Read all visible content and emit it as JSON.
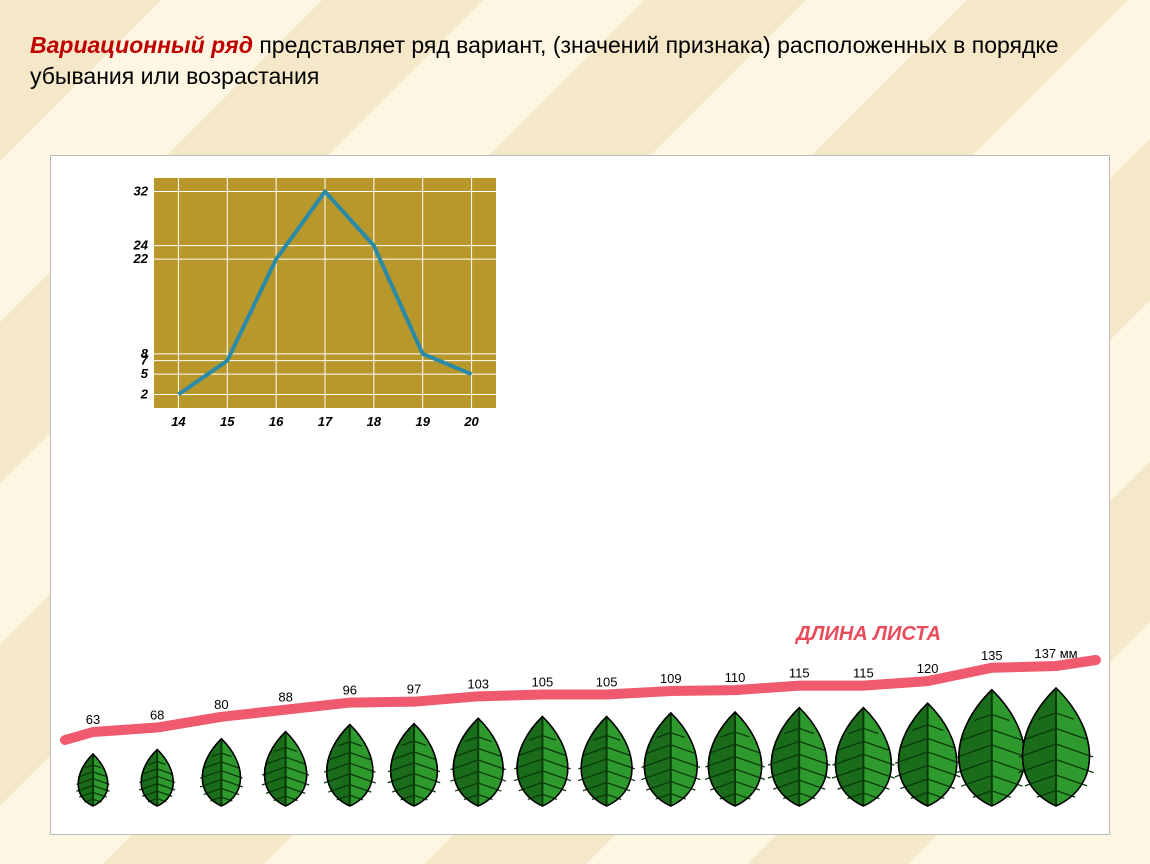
{
  "heading": {
    "term": "Вариационный ряд",
    "rest": " представляет ряд вариант, (значений признака) расположенных в порядке убывания или возрастания"
  },
  "chart": {
    "type": "line",
    "plot_bg": "#b8982a",
    "line_color": "#2a8aa8",
    "line_width": 4,
    "grid_color": "#ffffff",
    "axis_label_color": "#000000",
    "axis_label_fontsize": 13,
    "axis_label_fontstyle": "italic",
    "axis_label_fontweight": "bold",
    "x_values": [
      14,
      15,
      16,
      17,
      18,
      19,
      20
    ],
    "y_values": [
      2,
      7,
      22,
      32,
      24,
      8,
      5
    ],
    "y_ticks": [
      2,
      5,
      7,
      8,
      22,
      24,
      32
    ],
    "x_ticks": [
      14,
      15,
      16,
      17,
      18,
      19,
      20
    ],
    "ylim": [
      0,
      34
    ],
    "xlim": [
      13.5,
      20.5
    ]
  },
  "leaf_series": {
    "title": "ДЛИНА ЛИСТА",
    "title_color": "#e84c5a",
    "title_fontsize": 20,
    "title_fontstyle": "italic",
    "title_fontweight": "bold",
    "unit": "мм",
    "ruler_color": "#f05a6e",
    "ruler_width": 10,
    "leaf_fill": "#2e9a2e",
    "leaf_fill_dark": "#1a6b1a",
    "leaf_vein": "#0a3a0a",
    "leaf_stroke": "#000000",
    "value_color": "#000000",
    "value_fontsize": 13,
    "values": [
      63,
      68,
      80,
      88,
      96,
      97,
      103,
      105,
      105,
      109,
      110,
      115,
      115,
      120,
      135,
      137
    ],
    "heights": [
      52,
      56,
      63,
      68,
      73,
      74,
      78,
      80,
      80,
      82,
      83,
      87,
      87,
      90,
      100,
      102
    ]
  },
  "colors": {
    "page_bg_light": "#fdf6e3",
    "page_bg_dark": "#f5e8c8",
    "canvas_bg": "#ffffff"
  }
}
